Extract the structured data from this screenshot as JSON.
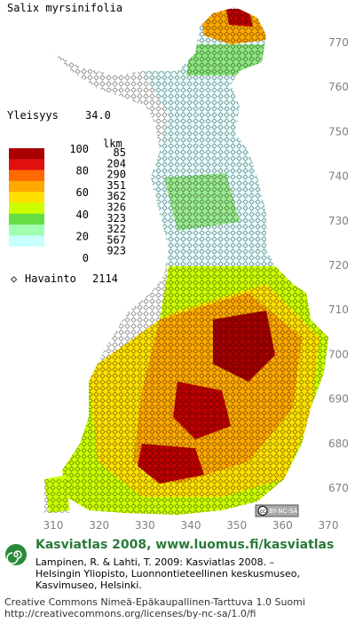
{
  "title": "Salix myrsinifolia",
  "frequency": {
    "label": "Yleisyys",
    "value": "34.0"
  },
  "legend": {
    "scale_labels": [
      100,
      80,
      60,
      40,
      20,
      0
    ],
    "count_header": "lkm",
    "counts": [
      85,
      204,
      290,
      351,
      362,
      326,
      323,
      322,
      567,
      923
    ],
    "colors": [
      "#a80000",
      "#e01010",
      "#ff6a00",
      "#ffa800",
      "#ffe000",
      "#ccff00",
      "#66dd44",
      "#a0ffb0",
      "#c8ffff",
      "#ffffff"
    ]
  },
  "observations": {
    "label": "Havainto",
    "value": 2114
  },
  "x_ticks": [
    310,
    320,
    330,
    340,
    350,
    360,
    370
  ],
  "y_ticks": [
    670,
    680,
    690,
    700,
    710,
    720,
    730,
    740,
    750,
    760,
    770
  ],
  "license_badge": {
    "icon": "cc",
    "text": "BY-NC-SA"
  },
  "footer": {
    "heading": "Kasviatlas 2008, www.luomus.fi/kasviatlas",
    "citation": [
      "Lampinen, R. & Lahti, T. 2009: Kasviatlas 2008. –",
      "Helsingin Yliopisto, Luonnontieteellinen keskusmuseo,",
      "Kasvimuseo, Helsinki."
    ],
    "license": [
      "Creative Commons Nimeä-Epäkaupallinen-Tarttuva 1.0 Suomi",
      "http://creativecommons.org/licenses/by-nc-sa/1.0/fi"
    ]
  }
}
